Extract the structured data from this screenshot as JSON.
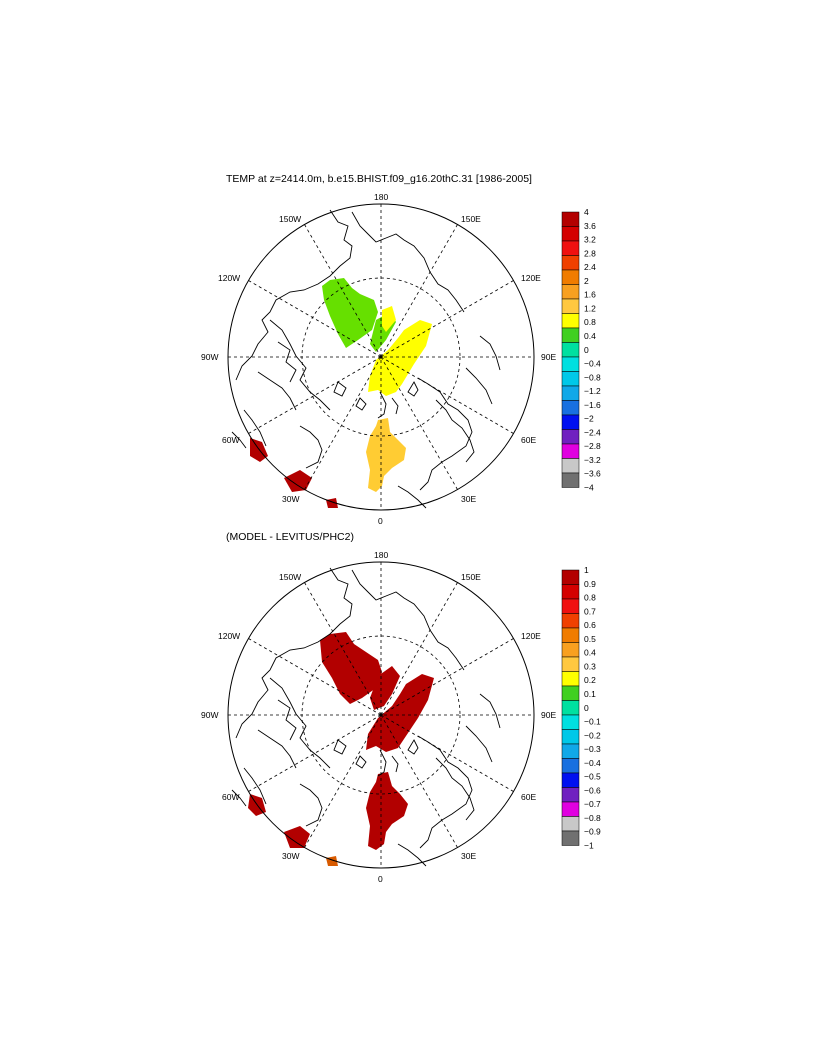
{
  "top_panel": {
    "title": "TEMP at z=2414.0m, b.e15.BHIST.f09_g16.20thC.31 [1986-2005]",
    "lon_labels": {
      "n180": "180",
      "n150W": "150W",
      "n150E": "150E",
      "n120W": "120W",
      "n120E": "120E",
      "n90W": "90W",
      "n90E": "90E",
      "n60W": "60W",
      "n60E": "60E",
      "n30W": "30W",
      "n30E": "30E",
      "n0": "0"
    },
    "colorbar_labels": [
      "4",
      "3.6",
      "3.2",
      "2.8",
      "2.4",
      "2",
      "1.6",
      "1.2",
      "0.8",
      "0.4",
      "0",
      "−0.4",
      "−0.8",
      "−1.2",
      "−1.6",
      "−2",
      "−2.4",
      "−2.8",
      "−3.2",
      "−3.6",
      "−4"
    ]
  },
  "bottom_panel": {
    "title": "(MODEL - LEVITUS/PHC2)",
    "lon_labels": {
      "n180": "180",
      "n150W": "150W",
      "n150E": "150E",
      "n120W": "120W",
      "n120E": "120E",
      "n90W": "90W",
      "n90E": "90E",
      "n60W": "60W",
      "n60E": "60E",
      "n30W": "30W",
      "n30E": "30E",
      "n0": "0"
    },
    "colorbar_labels": [
      "1",
      "0.9",
      "0.8",
      "0.7",
      "0.6",
      "0.5",
      "0.4",
      "0.3",
      "0.2",
      "0.1",
      "0",
      "−0.1",
      "−0.2",
      "−0.3",
      "−0.4",
      "−0.5",
      "−0.6",
      "−0.7",
      "−0.8",
      "−0.9",
      "−1"
    ]
  },
  "colorbar_colors": [
    "#b30000",
    "#d40000",
    "#f01010",
    "#f04000",
    "#f07c00",
    "#f8a020",
    "#ffc840",
    "#ffff00",
    "#40d020",
    "#00e0a0",
    "#00e0e0",
    "#00c8e8",
    "#10a8e8",
    "#1870e0",
    "#0010f0",
    "#7020c0",
    "#e000e0",
    "#c8c8c8",
    "#707070"
  ],
  "field_colors": {
    "green": "#66e000",
    "yellow": "#ffff00",
    "gold": "#ffcc33",
    "darkred": "#b20000",
    "coast": "#000000"
  }
}
